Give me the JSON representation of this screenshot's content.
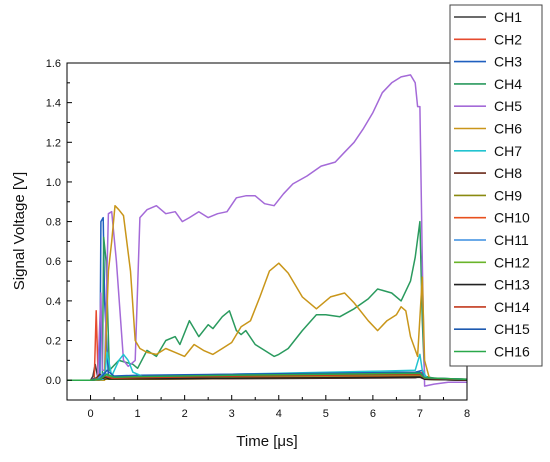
{
  "chart_data": {
    "type": "line",
    "title": "",
    "xlabel": "Time [μs]",
    "ylabel": "Signal Voltage [V]",
    "xlim": [
      -0.5,
      8
    ],
    "ylim": [
      -0.1,
      1.6
    ],
    "xticks": [
      0,
      1,
      2,
      3,
      4,
      5,
      6,
      7,
      8
    ],
    "xtick_labels": [
      "0",
      "1",
      "2",
      "3",
      "4",
      "5",
      "6",
      "7",
      "8"
    ],
    "yticks": [
      0.0,
      0.2,
      0.4,
      0.6,
      0.8,
      1.0,
      1.2,
      1.4,
      1.6
    ],
    "ytick_labels": [
      "0.0",
      "0.2",
      "0.4",
      "0.6",
      "0.8",
      "1.0",
      "1.2",
      "1.4",
      "1.6"
    ],
    "grid": false,
    "legend_position": "right",
    "series": [
      {
        "name": "CH1",
        "color": "#3a3a3a",
        "points": [
          [
            -0.5,
            0
          ],
          [
            0,
            0
          ],
          [
            0.05,
            0.02
          ],
          [
            0.1,
            0.08
          ],
          [
            0.15,
            0.02
          ],
          [
            0.3,
            0.005
          ],
          [
            1,
            0.005
          ],
          [
            3,
            0.008
          ],
          [
            5,
            0.01
          ],
          [
            6.9,
            0.012
          ],
          [
            7.05,
            0.02
          ],
          [
            7.1,
            0.005
          ],
          [
            8,
            0
          ]
        ]
      },
      {
        "name": "CH2",
        "color": "#e64a2e",
        "points": [
          [
            -0.5,
            0
          ],
          [
            0,
            0
          ],
          [
            0.08,
            0.01
          ],
          [
            0.12,
            0.35
          ],
          [
            0.16,
            0.02
          ],
          [
            0.3,
            0.01
          ],
          [
            1,
            0.01
          ],
          [
            3,
            0.015
          ],
          [
            5,
            0.015
          ],
          [
            6.9,
            0.02
          ],
          [
            7.05,
            0.04
          ],
          [
            7.1,
            0.01
          ],
          [
            8,
            0.005
          ]
        ]
      },
      {
        "name": "CH3",
        "color": "#1f5fbf",
        "points": [
          [
            -0.5,
            0
          ],
          [
            0,
            0
          ],
          [
            0.2,
            0.02
          ],
          [
            0.22,
            0.8
          ],
          [
            0.27,
            0.82
          ],
          [
            0.3,
            0.4
          ],
          [
            0.38,
            0.02
          ],
          [
            1,
            0.025
          ],
          [
            3,
            0.03
          ],
          [
            5,
            0.035
          ],
          [
            6.9,
            0.04
          ],
          [
            7.05,
            0.05
          ],
          [
            7.1,
            0.01
          ],
          [
            8,
            0.005
          ]
        ]
      },
      {
        "name": "CH4",
        "color": "#2a9a5e",
        "points": [
          [
            -0.5,
            0
          ],
          [
            0,
            0
          ],
          [
            0.25,
            0.01
          ],
          [
            0.28,
            0.72
          ],
          [
            0.33,
            0.6
          ],
          [
            0.4,
            0.05
          ],
          [
            0.6,
            0.1
          ],
          [
            0.9,
            0.08
          ],
          [
            1,
            0.06
          ],
          [
            1.2,
            0.15
          ],
          [
            1.4,
            0.12
          ],
          [
            1.6,
            0.2
          ],
          [
            1.8,
            0.22
          ],
          [
            1.9,
            0.18
          ],
          [
            2.1,
            0.3
          ],
          [
            2.3,
            0.22
          ],
          [
            2.5,
            0.28
          ],
          [
            2.6,
            0.26
          ],
          [
            2.8,
            0.32
          ],
          [
            2.95,
            0.35
          ],
          [
            3.1,
            0.25
          ],
          [
            3.2,
            0.23
          ],
          [
            3.3,
            0.25
          ],
          [
            3.5,
            0.18
          ],
          [
            3.7,
            0.15
          ],
          [
            3.9,
            0.12
          ],
          [
            4.0,
            0.13
          ],
          [
            4.2,
            0.16
          ],
          [
            4.5,
            0.25
          ],
          [
            4.8,
            0.33
          ],
          [
            5.0,
            0.33
          ],
          [
            5.3,
            0.32
          ],
          [
            5.6,
            0.36
          ],
          [
            5.9,
            0.41
          ],
          [
            6.1,
            0.46
          ],
          [
            6.4,
            0.44
          ],
          [
            6.6,
            0.4
          ],
          [
            6.8,
            0.5
          ],
          [
            6.9,
            0.62
          ],
          [
            7.0,
            0.8
          ],
          [
            7.05,
            0.3
          ],
          [
            7.1,
            0.02
          ],
          [
            7.3,
            0.01
          ],
          [
            8,
            0.005
          ]
        ]
      },
      {
        "name": "CH5",
        "color": "#a46ad8",
        "points": [
          [
            -0.5,
            0
          ],
          [
            0,
            0
          ],
          [
            0.15,
            0
          ],
          [
            0.22,
            0.44
          ],
          [
            0.25,
            0.05
          ],
          [
            0.3,
            0.05
          ],
          [
            0.38,
            0.84
          ],
          [
            0.45,
            0.85
          ],
          [
            0.55,
            0.6
          ],
          [
            0.7,
            0.1
          ],
          [
            0.8,
            0.07
          ],
          [
            0.95,
            0.1
          ],
          [
            1.05,
            0.82
          ],
          [
            1.2,
            0.86
          ],
          [
            1.4,
            0.88
          ],
          [
            1.6,
            0.84
          ],
          [
            1.8,
            0.85
          ],
          [
            1.95,
            0.8
          ],
          [
            2.1,
            0.82
          ],
          [
            2.3,
            0.85
          ],
          [
            2.5,
            0.82
          ],
          [
            2.7,
            0.84
          ],
          [
            2.9,
            0.85
          ],
          [
            3.1,
            0.92
          ],
          [
            3.3,
            0.93
          ],
          [
            3.5,
            0.93
          ],
          [
            3.7,
            0.89
          ],
          [
            3.9,
            0.88
          ],
          [
            4.1,
            0.94
          ],
          [
            4.3,
            0.99
          ],
          [
            4.6,
            1.03
          ],
          [
            4.9,
            1.08
          ],
          [
            5.2,
            1.1
          ],
          [
            5.4,
            1.15
          ],
          [
            5.6,
            1.2
          ],
          [
            5.8,
            1.27
          ],
          [
            6.0,
            1.35
          ],
          [
            6.2,
            1.45
          ],
          [
            6.4,
            1.5
          ],
          [
            6.6,
            1.53
          ],
          [
            6.8,
            1.54
          ],
          [
            6.9,
            1.5
          ],
          [
            6.95,
            1.38
          ],
          [
            7.0,
            1.38
          ],
          [
            7.05,
            0.6
          ],
          [
            7.1,
            -0.03
          ],
          [
            7.3,
            -0.02
          ],
          [
            7.6,
            -0.01
          ],
          [
            8,
            -0.01
          ]
        ]
      },
      {
        "name": "CH6",
        "color": "#c9961a",
        "points": [
          [
            -0.5,
            0
          ],
          [
            0,
            0
          ],
          [
            0.3,
            0
          ],
          [
            0.38,
            0.55
          ],
          [
            0.45,
            0.7
          ],
          [
            0.52,
            0.88
          ],
          [
            0.6,
            0.86
          ],
          [
            0.7,
            0.83
          ],
          [
            0.85,
            0.55
          ],
          [
            0.95,
            0.2
          ],
          [
            1.05,
            0.16
          ],
          [
            1.2,
            0.14
          ],
          [
            1.4,
            0.13
          ],
          [
            1.6,
            0.16
          ],
          [
            1.8,
            0.14
          ],
          [
            2.0,
            0.12
          ],
          [
            2.2,
            0.18
          ],
          [
            2.4,
            0.15
          ],
          [
            2.6,
            0.13
          ],
          [
            2.8,
            0.16
          ],
          [
            3.0,
            0.19
          ],
          [
            3.2,
            0.27
          ],
          [
            3.4,
            0.3
          ],
          [
            3.6,
            0.42
          ],
          [
            3.8,
            0.55
          ],
          [
            4.0,
            0.59
          ],
          [
            4.2,
            0.54
          ],
          [
            4.5,
            0.42
          ],
          [
            4.8,
            0.36
          ],
          [
            5.1,
            0.42
          ],
          [
            5.4,
            0.44
          ],
          [
            5.6,
            0.39
          ],
          [
            5.9,
            0.3
          ],
          [
            6.1,
            0.25
          ],
          [
            6.3,
            0.3
          ],
          [
            6.5,
            0.33
          ],
          [
            6.6,
            0.37
          ],
          [
            6.7,
            0.35
          ],
          [
            6.8,
            0.22
          ],
          [
            6.95,
            0.12
          ],
          [
            7.05,
            0.52
          ],
          [
            7.1,
            0.1
          ],
          [
            7.2,
            0.01
          ],
          [
            8,
            0.005
          ]
        ]
      },
      {
        "name": "CH7",
        "color": "#22c3d0",
        "points": [
          [
            -0.5,
            0
          ],
          [
            0,
            0
          ],
          [
            0.3,
            0.005
          ],
          [
            0.35,
            0.14
          ],
          [
            0.45,
            0.02
          ],
          [
            0.6,
            0.1
          ],
          [
            0.7,
            0.13
          ],
          [
            0.8,
            0.1
          ],
          [
            0.9,
            0.04
          ],
          [
            1.1,
            0.02
          ],
          [
            1.5,
            0.015
          ],
          [
            2,
            0.02
          ],
          [
            3,
            0.03
          ],
          [
            4,
            0.035
          ],
          [
            5,
            0.04
          ],
          [
            6,
            0.045
          ],
          [
            6.9,
            0.05
          ],
          [
            7.0,
            0.13
          ],
          [
            7.05,
            0.05
          ],
          [
            7.15,
            0.01
          ],
          [
            8,
            0.005
          ]
        ]
      },
      {
        "name": "CH8",
        "color": "#6a2a1a",
        "points": [
          [
            -0.5,
            0
          ],
          [
            0,
            0
          ],
          [
            0.1,
            0.005
          ],
          [
            0.2,
            0.03
          ],
          [
            0.3,
            0.005
          ],
          [
            1,
            0.005
          ],
          [
            3,
            0.008
          ],
          [
            5,
            0.01
          ],
          [
            7,
            0.015
          ],
          [
            7.1,
            0.005
          ],
          [
            8,
            0
          ]
        ]
      },
      {
        "name": "CH9",
        "color": "#8a8a10",
        "points": [
          [
            -0.5,
            0
          ],
          [
            0,
            0
          ],
          [
            0.1,
            0.005
          ],
          [
            0.25,
            0.02
          ],
          [
            0.35,
            0.005
          ],
          [
            1,
            0.006
          ],
          [
            3,
            0.01
          ],
          [
            5,
            0.012
          ],
          [
            7,
            0.018
          ],
          [
            7.1,
            0.005
          ],
          [
            8,
            0
          ]
        ]
      },
      {
        "name": "CH10",
        "color": "#e8501e",
        "points": [
          [
            -0.5,
            0
          ],
          [
            0,
            0
          ],
          [
            0.15,
            0.005
          ],
          [
            0.3,
            0.02
          ],
          [
            0.4,
            0.008
          ],
          [
            1,
            0.01
          ],
          [
            3,
            0.015
          ],
          [
            5,
            0.02
          ],
          [
            7,
            0.025
          ],
          [
            7.1,
            0.008
          ],
          [
            8,
            0.002
          ]
        ]
      },
      {
        "name": "CH11",
        "color": "#3a8ee0",
        "points": [
          [
            -0.5,
            0
          ],
          [
            0,
            0
          ],
          [
            0.15,
            0.005
          ],
          [
            0.3,
            0.04
          ],
          [
            0.4,
            0.012
          ],
          [
            1,
            0.015
          ],
          [
            3,
            0.02
          ],
          [
            5,
            0.025
          ],
          [
            7,
            0.03
          ],
          [
            7.1,
            0.01
          ],
          [
            8,
            0.003
          ]
        ]
      },
      {
        "name": "CH12",
        "color": "#6ab42a",
        "points": [
          [
            -0.5,
            0
          ],
          [
            0,
            0
          ],
          [
            0.2,
            0.005
          ],
          [
            0.35,
            0.03
          ],
          [
            0.45,
            0.01
          ],
          [
            1,
            0.012
          ],
          [
            3,
            0.018
          ],
          [
            5,
            0.022
          ],
          [
            7,
            0.028
          ],
          [
            7.1,
            0.01
          ],
          [
            8,
            0.003
          ]
        ]
      },
      {
        "name": "CH13",
        "color": "#222222",
        "points": [
          [
            -0.5,
            0
          ],
          [
            0,
            0
          ],
          [
            0.2,
            0.004
          ],
          [
            0.3,
            0.015
          ],
          [
            0.4,
            0.006
          ],
          [
            1,
            0.008
          ],
          [
            3,
            0.01
          ],
          [
            5,
            0.012
          ],
          [
            7,
            0.016
          ],
          [
            7.1,
            0.005
          ],
          [
            8,
            0
          ]
        ]
      },
      {
        "name": "CH14",
        "color": "#c23a1e",
        "points": [
          [
            -0.5,
            0
          ],
          [
            0,
            0
          ],
          [
            0.2,
            0.005
          ],
          [
            0.3,
            0.02
          ],
          [
            0.45,
            0.01
          ],
          [
            1,
            0.012
          ],
          [
            3,
            0.02
          ],
          [
            5,
            0.025
          ],
          [
            7,
            0.03
          ],
          [
            7.1,
            0.01
          ],
          [
            8,
            0.003
          ]
        ]
      },
      {
        "name": "CH15",
        "color": "#1d5ab0",
        "points": [
          [
            -0.5,
            0
          ],
          [
            0,
            0
          ],
          [
            0.2,
            0.005
          ],
          [
            0.35,
            0.05
          ],
          [
            0.5,
            0.02
          ],
          [
            1,
            0.02
          ],
          [
            3,
            0.03
          ],
          [
            5,
            0.035
          ],
          [
            7,
            0.04
          ],
          [
            7.1,
            0.012
          ],
          [
            8,
            0.004
          ]
        ]
      },
      {
        "name": "CH16",
        "color": "#2aa84a",
        "points": [
          [
            -0.5,
            0
          ],
          [
            0,
            0
          ],
          [
            0.2,
            0.005
          ],
          [
            0.35,
            0.03
          ],
          [
            0.5,
            0.015
          ],
          [
            1,
            0.018
          ],
          [
            3,
            0.025
          ],
          [
            5,
            0.03
          ],
          [
            7,
            0.035
          ],
          [
            7.1,
            0.012
          ],
          [
            8,
            0.004
          ]
        ]
      }
    ]
  }
}
